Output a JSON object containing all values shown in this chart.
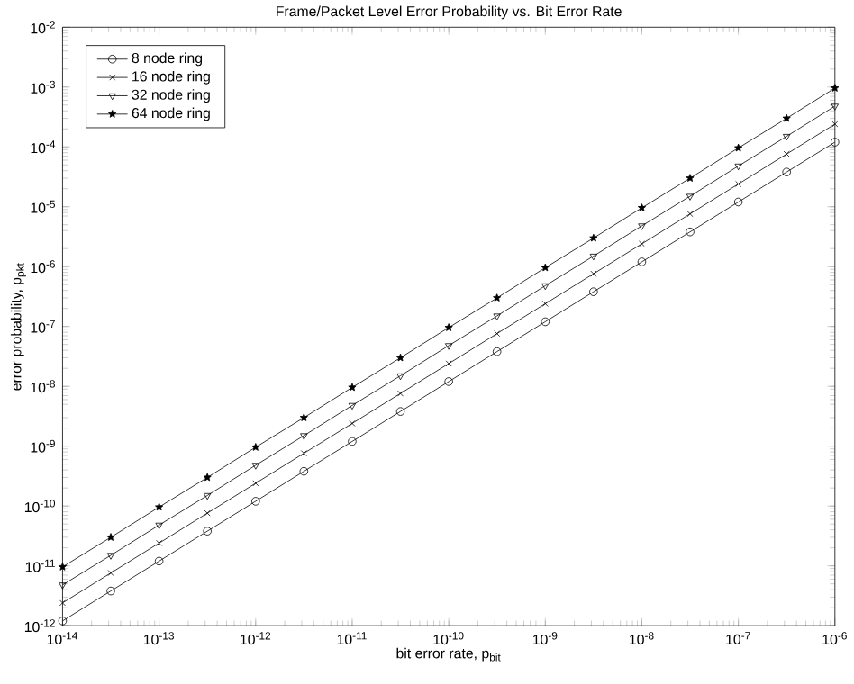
{
  "chart_data": {
    "type": "line",
    "title": "Frame/Packet Level Error Probability vs. Bit Error Rate",
    "xlabel": "bit error rate, p$_{bit}$",
    "ylabel": "error probability, p$_{pkt}$",
    "log": "xy",
    "grid": false,
    "legend": "top left",
    "line_style": "solid",
    "x": [
      1e-14,
      3.16e-14,
      1e-13,
      3.16e-13,
      1e-12,
      3.16e-12,
      1e-11,
      3.16e-11,
      1e-10,
      3.16e-10,
      1e-09,
      3.16e-09,
      1e-08,
      3.16e-08,
      1e-07,
      3.16e-07,
      1e-06
    ],
    "series": [
      {
        "name": "8 node ring",
        "color": "#000000",
        "marker": "circle",
        "values": [
          1.2e-12,
          3.8e-12,
          1.2e-11,
          3.8e-11,
          1.2e-10,
          3.8e-10,
          1.2e-09,
          3.8e-09,
          1.2e-08,
          3.8e-08,
          1.2e-07,
          3.8e-07,
          1.2e-06,
          3.8e-06,
          1.2e-05,
          3.8e-05,
          0.00012
        ]
      },
      {
        "name": "16 node ring",
        "color": "#000000",
        "marker": "cross",
        "values": [
          2.4e-12,
          7.6e-12,
          2.4e-11,
          7.6e-11,
          2.4e-10,
          7.6e-10,
          2.4e-09,
          7.6e-09,
          2.4e-08,
          7.6e-08,
          2.4e-07,
          7.6e-07,
          2.4e-06,
          7.6e-06,
          2.4e-05,
          7.6e-05,
          0.00024
        ]
      },
      {
        "name": "32 node ring",
        "color": "#000000",
        "marker": "triangle",
        "values": [
          4.8e-12,
          1.5e-11,
          4.8e-11,
          1.5e-10,
          4.8e-10,
          1.5e-09,
          4.8e-09,
          1.5e-08,
          4.8e-08,
          1.5e-07,
          4.8e-07,
          1.5e-06,
          4.8e-06,
          1.5e-05,
          4.8e-05,
          0.00015,
          0.00048
        ]
      },
      {
        "name": "64 node ring",
        "color": "#000000",
        "marker": "star",
        "values": [
          9.6e-12,
          3e-11,
          9.6e-11,
          3e-10,
          9.6e-10,
          3e-09,
          9.6e-09,
          3e-08,
          9.6e-08,
          3e-07,
          9.6e-07,
          3e-06,
          9.6e-06,
          3e-05,
          9.6e-05,
          0.0003,
          0.00096
        ]
      }
    ],
    "xlim": [
      1e-14,
      1e-06
    ],
    "ylim": [
      1e-12,
      0.01
    ],
    "xticks": [
      {
        "value": 1e-14,
        "label": "10$^{-14}$"
      },
      {
        "value": 1e-13,
        "label": "10$^{-13}$"
      },
      {
        "value": 1e-12,
        "label": "10$^{-12}$"
      },
      {
        "value": 1e-11,
        "label": "10$^{-11}$"
      },
      {
        "value": 1e-10,
        "label": "10$^{-10}$"
      },
      {
        "value": 1e-09,
        "label": "10$^{-9}$"
      },
      {
        "value": 1e-08,
        "label": "10$^{-8}$"
      },
      {
        "value": 1e-07,
        "label": "10$^{-7}$"
      },
      {
        "value": 1e-06,
        "label": "10$^{-6}$"
      }
    ],
    "yticks": [
      {
        "value": 1e-12,
        "label": "10$^{-12}$"
      },
      {
        "value": 1e-11,
        "label": "10$^{-11}$"
      },
      {
        "value": 1e-10,
        "label": "10$^{-10}$"
      },
      {
        "value": 1e-09,
        "label": "10$^{-9}$"
      },
      {
        "value": 1e-08,
        "label": "10$^{-8}$"
      },
      {
        "value": 1e-07,
        "label": "10$^{-7}$"
      },
      {
        "value": 1e-06,
        "label": "10$^{-6}$"
      },
      {
        "value": 1e-05,
        "label": "10$^{-5}$"
      },
      {
        "value": 0.0001,
        "label": "10$^{-4}$"
      },
      {
        "value": 0.001,
        "label": "10$^{-3}$"
      },
      {
        "value": 0.01,
        "label": "10$^{-2}$"
      }
    ]
  }
}
